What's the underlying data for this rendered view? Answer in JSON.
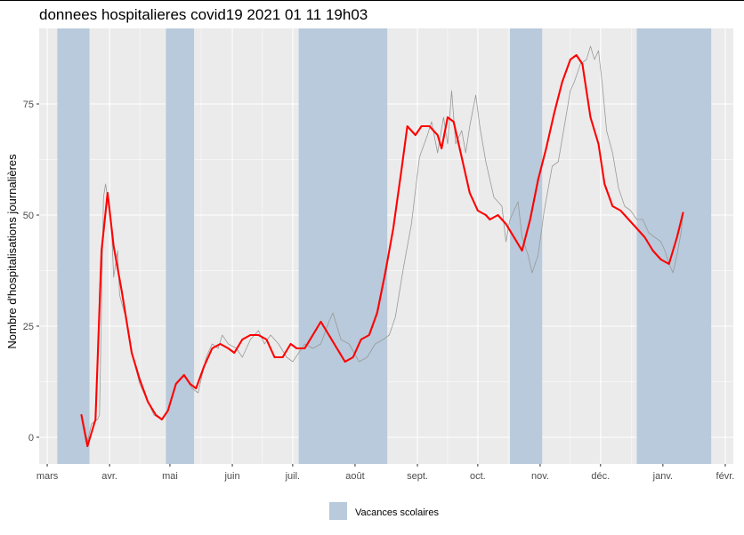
{
  "chart_data": {
    "type": "line",
    "title": "donnees hospitalieres covid19 2021 01 11 19h03",
    "xlabel": "",
    "ylabel": "Nombre d'hospitalisations journalières",
    "x_start": "2020-02-26",
    "x_end": "2021-02-05",
    "ylim": [
      -6,
      92
    ],
    "yticks": [
      0,
      25,
      50,
      75
    ],
    "xticks": [
      {
        "date": "2020-03-01",
        "label": "mars"
      },
      {
        "date": "2020-04-01",
        "label": "avr."
      },
      {
        "date": "2020-05-01",
        "label": "mai"
      },
      {
        "date": "2020-06-01",
        "label": "juin"
      },
      {
        "date": "2020-07-01",
        "label": "juil."
      },
      {
        "date": "2020-08-01",
        "label": "août"
      },
      {
        "date": "2020-09-01",
        "label": "sept."
      },
      {
        "date": "2020-10-01",
        "label": "oct."
      },
      {
        "date": "2020-11-01",
        "label": "nov."
      },
      {
        "date": "2020-12-01",
        "label": "déc."
      },
      {
        "date": "2021-01-01",
        "label": "janv."
      },
      {
        "date": "2021-02-01",
        "label": "févr."
      }
    ],
    "grid": true,
    "legend": {
      "position": "bottom",
      "label": "Vacances scolaires",
      "color": "#b8cadb"
    },
    "vacances": [
      {
        "start": "2020-03-06",
        "end": "2020-03-22"
      },
      {
        "start": "2020-04-29",
        "end": "2020-05-13"
      },
      {
        "start": "2020-07-04",
        "end": "2020-08-17"
      },
      {
        "start": "2020-10-17",
        "end": "2020-11-02"
      },
      {
        "start": "2020-12-19",
        "end": "2021-01-25"
      }
    ],
    "series": [
      {
        "color": "#999999",
        "points": [
          [
            "2020-03-18",
            5
          ],
          [
            "2020-03-21",
            -1
          ],
          [
            "2020-03-23",
            3
          ],
          [
            "2020-03-26",
            4
          ],
          [
            "2020-03-27",
            5
          ],
          [
            "2020-03-28",
            30
          ],
          [
            "2020-03-29",
            54
          ],
          [
            "2020-03-30",
            57
          ],
          [
            "2020-04-01",
            51
          ],
          [
            "2020-04-02",
            47
          ],
          [
            "2020-04-03",
            36
          ],
          [
            "2020-04-05",
            42
          ],
          [
            "2020-04-06",
            32
          ],
          [
            "2020-04-09",
            27
          ],
          [
            "2020-04-12",
            19
          ],
          [
            "2020-04-16",
            12
          ],
          [
            "2020-04-20",
            8
          ],
          [
            "2020-04-23",
            5
          ],
          [
            "2020-04-27",
            4
          ],
          [
            "2020-04-30",
            6
          ],
          [
            "2020-05-04",
            12
          ],
          [
            "2020-05-08",
            14
          ],
          [
            "2020-05-12",
            11
          ],
          [
            "2020-05-15",
            10
          ],
          [
            "2020-05-19",
            18
          ],
          [
            "2020-05-22",
            21
          ],
          [
            "2020-05-25",
            20
          ],
          [
            "2020-05-27",
            23
          ],
          [
            "2020-05-30",
            21
          ],
          [
            "2020-06-03",
            20
          ],
          [
            "2020-06-06",
            18
          ],
          [
            "2020-06-10",
            22
          ],
          [
            "2020-06-14",
            24
          ],
          [
            "2020-06-17",
            21
          ],
          [
            "2020-06-20",
            23
          ],
          [
            "2020-06-24",
            21
          ],
          [
            "2020-06-28",
            18
          ],
          [
            "2020-07-01",
            17
          ],
          [
            "2020-07-04",
            19
          ],
          [
            "2020-07-07",
            21
          ],
          [
            "2020-07-11",
            20
          ],
          [
            "2020-07-15",
            21
          ],
          [
            "2020-07-19",
            26
          ],
          [
            "2020-07-21",
            28
          ],
          [
            "2020-07-25",
            22
          ],
          [
            "2020-07-29",
            21
          ],
          [
            "2020-08-03",
            17
          ],
          [
            "2020-08-07",
            18
          ],
          [
            "2020-08-11",
            21
          ],
          [
            "2020-08-15",
            22
          ],
          [
            "2020-08-18",
            23
          ],
          [
            "2020-08-21",
            27
          ],
          [
            "2020-08-25",
            38
          ],
          [
            "2020-08-29",
            48
          ],
          [
            "2020-09-02",
            63
          ],
          [
            "2020-09-06",
            68
          ],
          [
            "2020-09-08",
            71
          ],
          [
            "2020-09-11",
            64
          ],
          [
            "2020-09-14",
            72
          ],
          [
            "2020-09-16",
            66
          ],
          [
            "2020-09-18",
            78
          ],
          [
            "2020-09-20",
            66
          ],
          [
            "2020-09-23",
            69
          ],
          [
            "2020-09-25",
            64
          ],
          [
            "2020-09-27",
            70
          ],
          [
            "2020-09-30",
            77
          ],
          [
            "2020-10-02",
            70
          ],
          [
            "2020-10-05",
            62
          ],
          [
            "2020-10-09",
            54
          ],
          [
            "2020-10-13",
            52
          ],
          [
            "2020-10-15",
            44
          ],
          [
            "2020-10-17",
            49
          ],
          [
            "2020-10-21",
            53
          ],
          [
            "2020-10-23",
            45
          ],
          [
            "2020-10-26",
            41
          ],
          [
            "2020-10-28",
            37
          ],
          [
            "2020-10-31",
            41
          ],
          [
            "2020-11-03",
            51
          ],
          [
            "2020-11-07",
            61
          ],
          [
            "2020-11-10",
            62
          ],
          [
            "2020-11-13",
            70
          ],
          [
            "2020-11-16",
            78
          ],
          [
            "2020-11-18",
            80
          ],
          [
            "2020-11-21",
            84
          ],
          [
            "2020-11-24",
            85
          ],
          [
            "2020-11-26",
            88
          ],
          [
            "2020-11-28",
            85
          ],
          [
            "2020-11-30",
            87
          ],
          [
            "2020-12-02",
            79
          ],
          [
            "2020-12-04",
            69
          ],
          [
            "2020-12-07",
            64
          ],
          [
            "2020-12-10",
            56
          ],
          [
            "2020-12-13",
            52
          ],
          [
            "2020-12-16",
            51
          ],
          [
            "2020-12-19",
            49
          ],
          [
            "2020-12-22",
            49
          ],
          [
            "2020-12-25",
            46
          ],
          [
            "2020-12-28",
            45
          ],
          [
            "2020-12-31",
            44
          ],
          [
            "2021-01-02",
            42
          ],
          [
            "2021-01-04",
            39
          ],
          [
            "2021-01-06",
            37
          ],
          [
            "2021-01-08",
            41
          ],
          [
            "2021-01-10",
            46
          ],
          [
            "2021-01-11",
            50
          ]
        ]
      },
      {
        "color": "#ff0000",
        "points": [
          [
            "2020-03-18",
            5
          ],
          [
            "2020-03-21",
            -2
          ],
          [
            "2020-03-25",
            4
          ],
          [
            "2020-03-28",
            42
          ],
          [
            "2020-03-31",
            55
          ],
          [
            "2020-04-03",
            43
          ],
          [
            "2020-04-07",
            33
          ],
          [
            "2020-04-12",
            19
          ],
          [
            "2020-04-16",
            13
          ],
          [
            "2020-04-20",
            8
          ],
          [
            "2020-04-24",
            5
          ],
          [
            "2020-04-27",
            4
          ],
          [
            "2020-04-30",
            6
          ],
          [
            "2020-05-04",
            12
          ],
          [
            "2020-05-08",
            14
          ],
          [
            "2020-05-11",
            12
          ],
          [
            "2020-05-14",
            11
          ],
          [
            "2020-05-18",
            16
          ],
          [
            "2020-05-22",
            20
          ],
          [
            "2020-05-26",
            21
          ],
          [
            "2020-05-30",
            20
          ],
          [
            "2020-06-02",
            19
          ],
          [
            "2020-06-06",
            22
          ],
          [
            "2020-06-10",
            23
          ],
          [
            "2020-06-14",
            23
          ],
          [
            "2020-06-18",
            22
          ],
          [
            "2020-06-22",
            18
          ],
          [
            "2020-06-26",
            18
          ],
          [
            "2020-06-30",
            21
          ],
          [
            "2020-07-03",
            20
          ],
          [
            "2020-07-07",
            20
          ],
          [
            "2020-07-11",
            23
          ],
          [
            "2020-07-15",
            26
          ],
          [
            "2020-07-19",
            23
          ],
          [
            "2020-07-23",
            20
          ],
          [
            "2020-07-27",
            17
          ],
          [
            "2020-07-31",
            18
          ],
          [
            "2020-08-04",
            22
          ],
          [
            "2020-08-08",
            23
          ],
          [
            "2020-08-12",
            28
          ],
          [
            "2020-08-16",
            37
          ],
          [
            "2020-08-20",
            47
          ],
          [
            "2020-08-24",
            60
          ],
          [
            "2020-08-27",
            70
          ],
          [
            "2020-08-31",
            68
          ],
          [
            "2020-09-03",
            70
          ],
          [
            "2020-09-07",
            70
          ],
          [
            "2020-09-11",
            68
          ],
          [
            "2020-09-13",
            65
          ],
          [
            "2020-09-16",
            72
          ],
          [
            "2020-09-19",
            71
          ],
          [
            "2020-09-23",
            63
          ],
          [
            "2020-09-27",
            55
          ],
          [
            "2020-10-01",
            51
          ],
          [
            "2020-10-05",
            50
          ],
          [
            "2020-10-07",
            49
          ],
          [
            "2020-10-11",
            50
          ],
          [
            "2020-10-15",
            48
          ],
          [
            "2020-10-19",
            45
          ],
          [
            "2020-10-23",
            42
          ],
          [
            "2020-10-27",
            49
          ],
          [
            "2020-10-31",
            58
          ],
          [
            "2020-11-04",
            65
          ],
          [
            "2020-11-08",
            73
          ],
          [
            "2020-11-12",
            80
          ],
          [
            "2020-11-16",
            85
          ],
          [
            "2020-11-19",
            86
          ],
          [
            "2020-11-22",
            84
          ],
          [
            "2020-11-26",
            72
          ],
          [
            "2020-11-30",
            66
          ],
          [
            "2020-12-03",
            57
          ],
          [
            "2020-12-07",
            52
          ],
          [
            "2020-12-11",
            51
          ],
          [
            "2020-12-15",
            49
          ],
          [
            "2020-12-19",
            47
          ],
          [
            "2020-12-23",
            45
          ],
          [
            "2020-12-27",
            42
          ],
          [
            "2020-12-31",
            40
          ],
          [
            "2021-01-04",
            39
          ],
          [
            "2021-01-08",
            45
          ],
          [
            "2021-01-11",
            50.5
          ]
        ]
      }
    ]
  }
}
